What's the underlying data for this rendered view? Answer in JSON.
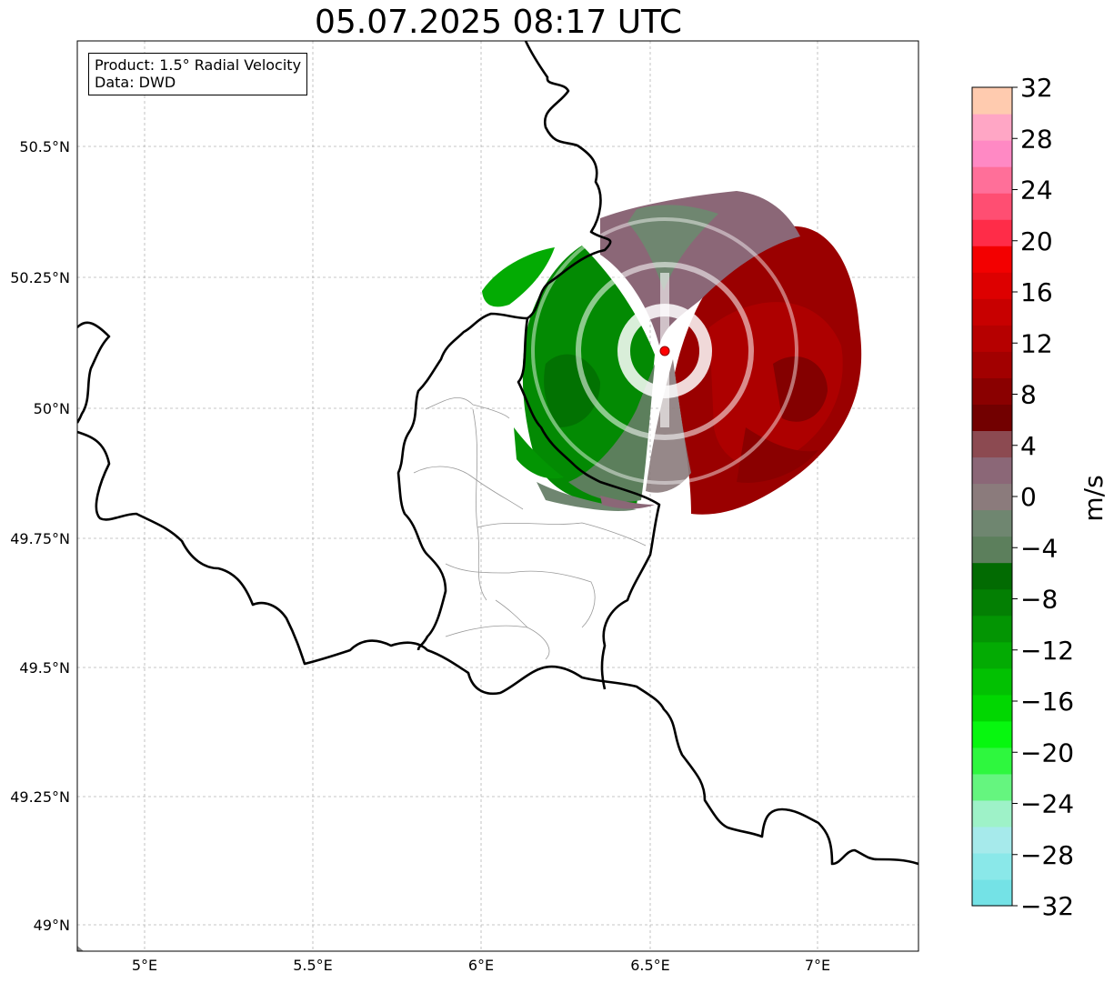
{
  "title": "05.07.2025 08:17 UTC",
  "info": {
    "product": "Product: 1.5° Radial Velocity",
    "data": "Data: DWD"
  },
  "map": {
    "lon_range": [
      4.8,
      7.3
    ],
    "lat_range": [
      48.95,
      50.7
    ],
    "x_ticks": [
      "5°E",
      "5.5°E",
      "6°E",
      "6.5°E",
      "7°E"
    ],
    "y_ticks": [
      "50.5°N",
      "50.25°N",
      "50°N",
      "49.75°N",
      "49.5°N",
      "49.25°N",
      "49°N"
    ],
    "gridlines": true,
    "radar_site_color": "#ff0000"
  },
  "colorbar": {
    "label": "m/s",
    "range": [
      -32,
      32
    ],
    "ticks": [
      "32",
      "28",
      "24",
      "20",
      "16",
      "12",
      "8",
      "4",
      "0",
      "−4",
      "−8",
      "−12",
      "−16",
      "−20",
      "−24",
      "−28",
      "−32"
    ],
    "colors_bottom_to_top": [
      "#74e2e6",
      "#8ae8e9",
      "#a6eaeb",
      "#9ef2c8",
      "#65f57f",
      "#2ef73e",
      "#07f70f",
      "#01d701",
      "#02c102",
      "#03ab03",
      "#039503",
      "#037f03",
      "#026b02",
      "#5c7f5c",
      "#6f8670",
      "#8b7b7c",
      "#8b6777",
      "#8c4a51",
      "#720000",
      "#8a0000",
      "#a20000",
      "#b60000",
      "#c80000",
      "#dd0000",
      "#f30000",
      "#ff2c48",
      "#ff4e72",
      "#ff6f99",
      "#ff89c4",
      "#ffa6c5",
      "#ffcbaf"
    ]
  }
}
